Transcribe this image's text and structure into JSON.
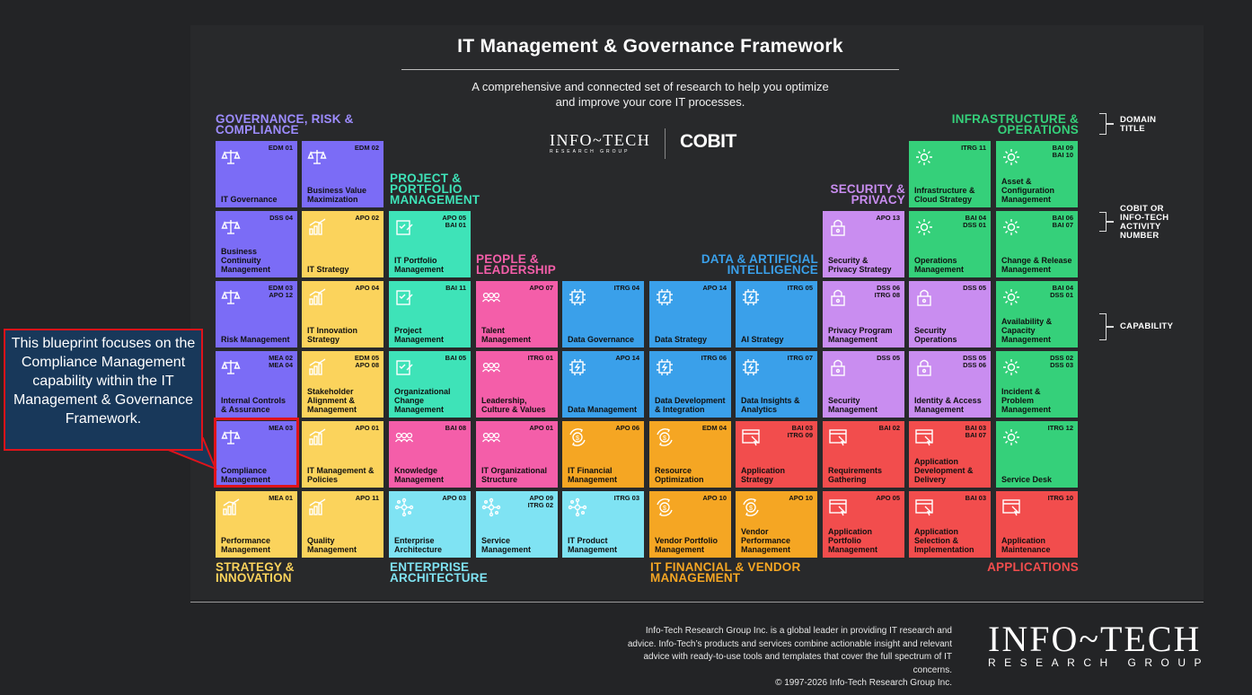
{
  "header": {
    "title": "IT Management & Governance Framework",
    "subtitle": "A comprehensive and connected set of research to help you optimize and improve your core IT processes.",
    "brand_infotech": "INFO~TECH",
    "brand_infotech_sub": "RESEARCH GROUP",
    "brand_cobit": "COBIT"
  },
  "domains": {
    "grc": "GOVERNANCE, RISK &\nCOMPLIANCE",
    "ppm": "PROJECT &\nPORTFOLIO\nMANAGEMENT",
    "people": "PEOPLE &\nLEADERSHIP",
    "data": "DATA & ARTIFICIAL\nINTELLIGENCE",
    "security": "SECURITY &\nPRIVACY",
    "infra": "INFRASTRUCTURE &\nOPERATIONS",
    "strategy": "STRATEGY &\nINNOVATION",
    "ea": "ENTERPRISE\nARCHITECTURE",
    "financial": "IT FINANCIAL & VENDOR\nMANAGEMENT",
    "apps": "APPLICATIONS"
  },
  "legend": {
    "domain_title": "DOMAIN\nTITLE",
    "activity_number": "COBIT OR\nINFO-TECH\nACTIVITY\nNUMBER",
    "capability": "CAPABILITY"
  },
  "colors": {
    "purple": "#7b6cf6",
    "yellow": "#fbd35c",
    "teal": "#3ee3b8",
    "pink": "#f45ea9",
    "blue": "#3aa0ea",
    "lavender": "#c98df0",
    "green": "#35d07a",
    "orange": "#f5a623",
    "red": "#f24d4d",
    "cyan": "#7fe3f3"
  },
  "tiles": [
    {
      "code": "EDM 01",
      "label": "IT Governance",
      "color": "purple",
      "icon": "scales-icon"
    },
    {
      "code": "EDM 02",
      "label": "Business Value\nMaximization",
      "color": "purple",
      "icon": "scales-icon"
    },
    {
      "code": "ITRG 11",
      "label": "Infrastructure &\nCloud Strategy",
      "color": "green",
      "icon": "gear-icon"
    },
    {
      "code": "BAI 09\nBAI 10",
      "label": "Asset &\nConfiguration\nManagement",
      "color": "green",
      "icon": "gear-icon"
    },
    {
      "code": "DSS 04",
      "label": "Business\nContinuity\nManagement",
      "color": "purple",
      "icon": "scales-icon"
    },
    {
      "code": "APO 02",
      "label": "IT Strategy",
      "color": "yellow",
      "icon": "chart-icon"
    },
    {
      "code": "APO 05\nBAI 01",
      "label": "IT Portfolio\nManagement",
      "color": "teal",
      "icon": "checklist-icon"
    },
    {
      "code": "APO 13",
      "label": "Security &\nPrivacy Strategy",
      "color": "lavender",
      "icon": "lock-icon"
    },
    {
      "code": "BAI 04\nDSS 01",
      "label": "Operations\nManagement",
      "color": "green",
      "icon": "gear-icon"
    },
    {
      "code": "BAI 06\nBAI 07",
      "label": "Change & Release\nManagement",
      "color": "green",
      "icon": "gear-icon"
    },
    {
      "code": "EDM 03\nAPO 12",
      "label": "Risk Management",
      "color": "purple",
      "icon": "scales-icon"
    },
    {
      "code": "APO 04",
      "label": "IT Innovation\nStrategy",
      "color": "yellow",
      "icon": "chart-icon"
    },
    {
      "code": "BAI 11",
      "label": "Project\nManagement",
      "color": "teal",
      "icon": "checklist-icon"
    },
    {
      "code": "APO 07",
      "label": "Talent\nManagement",
      "color": "pink",
      "icon": "people-icon"
    },
    {
      "code": "ITRG 04",
      "label": "Data Governance",
      "color": "blue",
      "icon": "chip-icon"
    },
    {
      "code": "APO 14",
      "label": "Data Strategy",
      "color": "blue",
      "icon": "chip-icon"
    },
    {
      "code": "ITRG 05",
      "label": "AI Strategy",
      "color": "blue",
      "icon": "chip-icon"
    },
    {
      "code": "DSS 06\nITRG 08",
      "label": "Privacy Program\nManagement",
      "color": "lavender",
      "icon": "lock-icon"
    },
    {
      "code": "DSS 05",
      "label": "Security\nOperations",
      "color": "lavender",
      "icon": "lock-icon"
    },
    {
      "code": "BAI 04\nDSS 01",
      "label": "Availability &\nCapacity\nManagement",
      "color": "green",
      "icon": "gear-icon"
    },
    {
      "code": "MEA 02\nMEA 04",
      "label": "Internal Controls\n& Assurance",
      "color": "purple",
      "icon": "scales-icon"
    },
    {
      "code": "EDM 05\nAPO 08",
      "label": "Stakeholder\nAlignment &\nManagement",
      "color": "yellow",
      "icon": "chart-icon"
    },
    {
      "code": "BAI 05",
      "label": "Organizational\nChange\nManagement",
      "color": "teal",
      "icon": "checklist-icon"
    },
    {
      "code": "ITRG 01",
      "label": "Leadership,\nCulture & Values",
      "color": "pink",
      "icon": "people-icon"
    },
    {
      "code": "APO 14",
      "label": "Data Management",
      "color": "blue",
      "icon": "chip-icon"
    },
    {
      "code": "ITRG 06",
      "label": "Data Development\n& Integration",
      "color": "blue",
      "icon": "chip-icon"
    },
    {
      "code": "ITRG 07",
      "label": "Data Insights &\nAnalytics",
      "color": "blue",
      "icon": "chip-icon"
    },
    {
      "code": "DSS 05",
      "label": "Security\nManagement",
      "color": "lavender",
      "icon": "lock-icon"
    },
    {
      "code": "DSS 05\nDSS 06",
      "label": "Identity & Access\nManagement",
      "color": "lavender",
      "icon": "lock-icon"
    },
    {
      "code": "DSS 02\nDSS 03",
      "label": "Incident &\nProblem\nManagement",
      "color": "green",
      "icon": "gear-icon"
    },
    {
      "code": "MEA 03",
      "label": "Compliance\nManagement",
      "color": "purple",
      "icon": "scales-icon"
    },
    {
      "code": "APO 01",
      "label": "IT Management &\nPolicies",
      "color": "yellow",
      "icon": "chart-icon"
    },
    {
      "code": "BAI 08",
      "label": "Knowledge\nManagement",
      "color": "pink",
      "icon": "people-icon"
    },
    {
      "code": "APO 01",
      "label": "IT Organizational\nStructure",
      "color": "pink",
      "icon": "people-icon"
    },
    {
      "code": "APO 06",
      "label": "IT Financial\nManagement",
      "color": "orange",
      "icon": "coin-icon"
    },
    {
      "code": "EDM 04",
      "label": "Resource\nOptimization",
      "color": "orange",
      "icon": "coin-icon"
    },
    {
      "code": "BAI 03\nITRG 09",
      "label": "Application\nStrategy",
      "color": "red",
      "icon": "window-icon"
    },
    {
      "code": "BAI 02",
      "label": "Requirements\nGathering",
      "color": "red",
      "icon": "window-icon"
    },
    {
      "code": "BAI 03\nBAI 07",
      "label": "Application\nDevelopment &\nDelivery",
      "color": "red",
      "icon": "window-icon"
    },
    {
      "code": "ITRG 12",
      "label": "Service Desk",
      "color": "green",
      "icon": "gear-icon"
    },
    {
      "code": "MEA 01",
      "label": "Performance\nManagement",
      "color": "yellow",
      "icon": "chart-icon"
    },
    {
      "code": "APO 11",
      "label": "Quality\nManagement",
      "color": "yellow",
      "icon": "chart-icon"
    },
    {
      "code": "APO 03",
      "label": "Enterprise\nArchitecture",
      "color": "cyan",
      "icon": "network-icon"
    },
    {
      "code": "APO 09\nITRG 02",
      "label": "Service\nManagement",
      "color": "cyan",
      "icon": "network-icon"
    },
    {
      "code": "ITRG 03",
      "label": "IT Product\nManagement",
      "color": "cyan",
      "icon": "network-icon"
    },
    {
      "code": "APO 10",
      "label": "Vendor Portfolio\nManagement",
      "color": "orange",
      "icon": "coin-icon"
    },
    {
      "code": "APO 10",
      "label": "Vendor\nPerformance\nManagement",
      "color": "orange",
      "icon": "coin-icon"
    },
    {
      "code": "APO 05",
      "label": "Application\nPortfolio\nManagement",
      "color": "red",
      "icon": "window-icon"
    },
    {
      "code": "BAI 03",
      "label": "Application\nSelection &\nImplementation",
      "color": "red",
      "icon": "window-icon"
    },
    {
      "code": "ITRG 10",
      "label": "Application\nMaintenance",
      "color": "red",
      "icon": "window-icon"
    }
  ],
  "callout": {
    "text": "This blueprint focuses on the Compliance Management capability within the IT Management & Governance Framework."
  },
  "footer": {
    "line1": "Info-Tech Research Group Inc. is a global leader in providing IT research and",
    "line2": "advice. Info-Tech’s products and services combine actionable insight and relevant",
    "line3": "advice with ready-to-use tools and templates that cover the full spectrum of IT",
    "line4": "concerns.",
    "copyright": "© 1997-2026 Info-Tech Research Group Inc.",
    "logo": "INFO~TECH",
    "logo_sub": "RESEARCH GROUP"
  }
}
